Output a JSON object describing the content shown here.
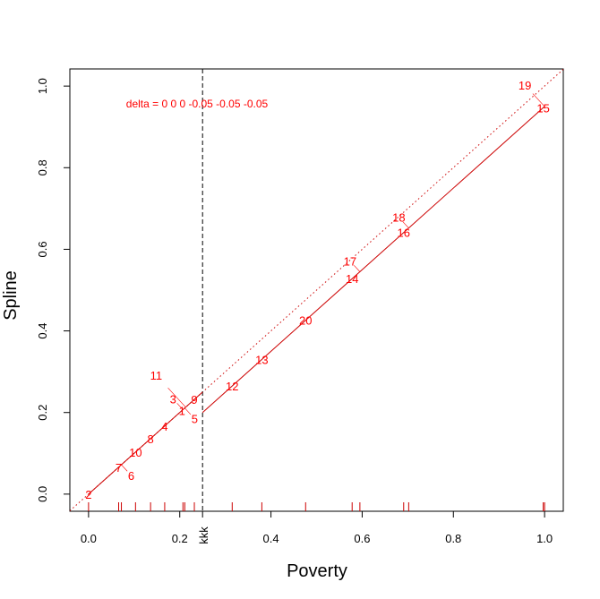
{
  "chart_data": {
    "type": "line",
    "xlabel": "Poverty",
    "ylabel": "Spline",
    "xlim": [
      -0.041,
      1.041
    ],
    "ylim": [
      -0.042,
      1.042
    ],
    "xticks": [
      "0.0",
      "0.2",
      "0.4",
      "0.6",
      "0.8",
      "1.0"
    ],
    "yticks": [
      "0.0",
      "0.2",
      "0.4",
      "0.6",
      "0.8",
      "1.0"
    ],
    "annotation": "delta = 0 0 0 -0.05 -0.05 -0.05",
    "knot": {
      "x": 0.25,
      "label": "kkk"
    },
    "spline_segments": [
      {
        "x": [
          0,
          0.25
        ],
        "y": [
          0,
          0.25
        ]
      },
      {
        "x": [
          0.25,
          1.0
        ],
        "y": [
          0.2,
          0.95
        ]
      }
    ],
    "reference_line": {
      "slope": 1,
      "intercept": 0
    },
    "points": [
      {
        "label": "2",
        "x": 0.0
      },
      {
        "label": "7",
        "x": 0.066
      },
      {
        "label": "6",
        "x": 0.072
      },
      {
        "label": "10",
        "x": 0.103
      },
      {
        "label": "8",
        "x": 0.136
      },
      {
        "label": "4",
        "x": 0.167
      },
      {
        "label": "1",
        "x": 0.205
      },
      {
        "label": "3",
        "x": 0.207
      },
      {
        "label": "5",
        "x": 0.211
      },
      {
        "label": "11",
        "x": 0.213
      },
      {
        "label": "9",
        "x": 0.232
      },
      {
        "label": "12",
        "x": 0.315
      },
      {
        "label": "13",
        "x": 0.38
      },
      {
        "label": "20",
        "x": 0.476
      },
      {
        "label": "14",
        "x": 0.578
      },
      {
        "label": "17",
        "x": 0.595
      },
      {
        "label": "16",
        "x": 0.691
      },
      {
        "label": "18",
        "x": 0.702
      },
      {
        "label": "15",
        "x": 0.997
      },
      {
        "label": "19",
        "x": 1.0
      }
    ],
    "rug": [
      0,
      0.066,
      0.072,
      0.103,
      0.136,
      0.167,
      0.207,
      0.211,
      0.232,
      0.315,
      0.38,
      0.476,
      0.578,
      0.595,
      0.691,
      0.702,
      0.997,
      1.0
    ],
    "colors": {
      "series": "#ff0000",
      "axis": "#000000",
      "line": "#cc0000"
    },
    "grid": false
  }
}
